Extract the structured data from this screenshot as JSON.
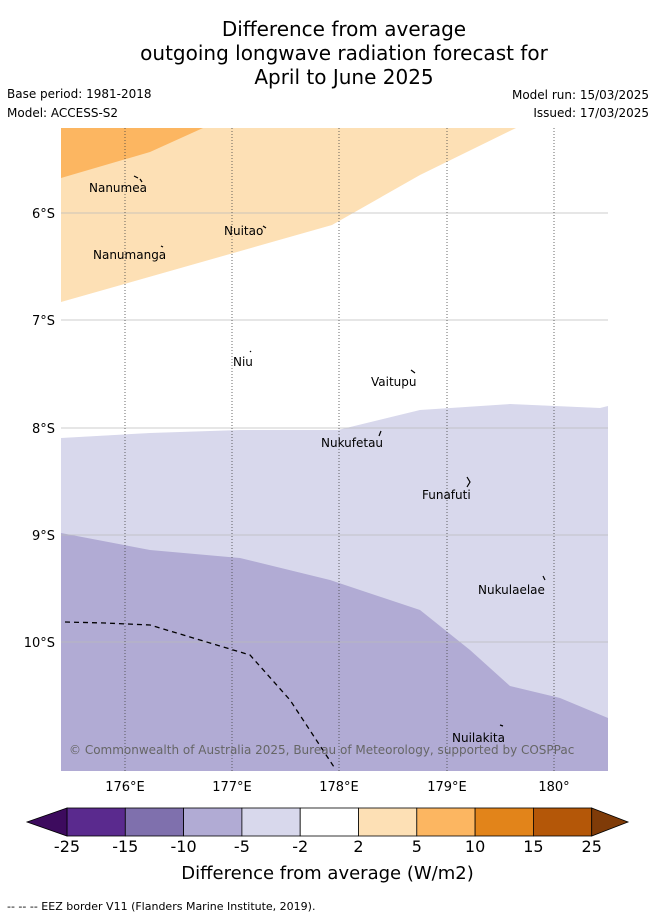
{
  "title": {
    "line1": "Difference from average",
    "line2": "outgoing longwave radiation forecast for",
    "line3": "April to June 2025"
  },
  "meta": {
    "base_period": "Base period: 1981-2018",
    "model": "Model: ACCESS-S2",
    "model_run": "Model run: 15/03/2025",
    "issued": "Issued: 17/03/2025"
  },
  "map": {
    "lat_labels": [
      "6°S",
      "7°S",
      "8°S",
      "9°S",
      "10°S"
    ],
    "lon_labels": [
      "176°E",
      "177°E",
      "178°E",
      "179°E",
      "180°"
    ],
    "places": [
      {
        "name": "Nanumea"
      },
      {
        "name": "Nuitao"
      },
      {
        "name": "Nanumanga"
      },
      {
        "name": "Niu"
      },
      {
        "name": "Vaitupu"
      },
      {
        "name": "Nukufetau"
      },
      {
        "name": "Funafuti"
      },
      {
        "name": "Nukulaelae"
      },
      {
        "name": "Nuilakita"
      }
    ],
    "copyright": "© Commonwealth of Australia 2025, Bureau of Meteorology, supported by COSPPac",
    "colors": {
      "p5_10": "#fcb661",
      "p2_5": "#fde0b5",
      "n2_2": "#ffffff",
      "n5_2": "#d8d8ec",
      "n10_5": "#b1abd4"
    }
  },
  "colorbar": {
    "labels": [
      "-25",
      "-15",
      "-10",
      "-5",
      "-2",
      "2",
      "5",
      "10",
      "15",
      "25"
    ],
    "colors": [
      "#5a2a8e",
      "#7f70ad",
      "#b1abd4",
      "#d8d8ec",
      "#ffffff",
      "#fde0b5",
      "#fcb661",
      "#e2841a",
      "#b45708"
    ],
    "under_color": "#3d0b5e",
    "over_color": "#7f3b08",
    "title": "Difference from average (W/m2)"
  },
  "footer": "-- -- -- EEZ border V11 (Flanders Marine Institute, 2019)."
}
